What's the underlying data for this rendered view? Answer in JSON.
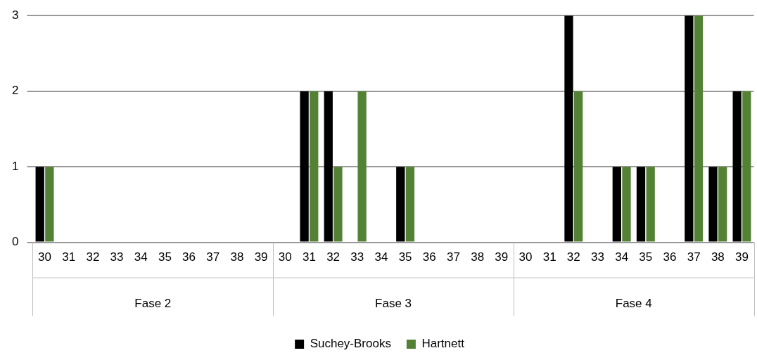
{
  "chart_data": {
    "type": "bar",
    "categories": [
      "30",
      "31",
      "32",
      "33",
      "34",
      "35",
      "36",
      "37",
      "38",
      "39",
      "30",
      "31",
      "32",
      "33",
      "34",
      "35",
      "36",
      "37",
      "38",
      "39",
      "30",
      "31",
      "32",
      "33",
      "34",
      "35",
      "36",
      "37",
      "38",
      "39"
    ],
    "series": [
      {
        "name": "Suchey-Brooks",
        "color": "#000000",
        "values": [
          1,
          0,
          0,
          0,
          0,
          0,
          0,
          0,
          0,
          0,
          0,
          2,
          2,
          0,
          0,
          1,
          0,
          0,
          0,
          0,
          0,
          0,
          3,
          0,
          1,
          1,
          0,
          3,
          1,
          2
        ]
      },
      {
        "name": "Hartnett",
        "color": "#548235",
        "values": [
          1,
          0,
          0,
          0,
          0,
          0,
          0,
          0,
          0,
          0,
          0,
          2,
          1,
          2,
          0,
          1,
          0,
          0,
          0,
          0,
          0,
          0,
          2,
          0,
          1,
          1,
          0,
          3,
          1,
          2
        ]
      }
    ],
    "annotations": [
      "Fase 2",
      "Fase 3",
      "Fase 4"
    ],
    "ylim": [
      0,
      3
    ],
    "yticks": [
      0,
      1,
      2,
      3
    ],
    "grid": "y",
    "legend": "bottom"
  }
}
